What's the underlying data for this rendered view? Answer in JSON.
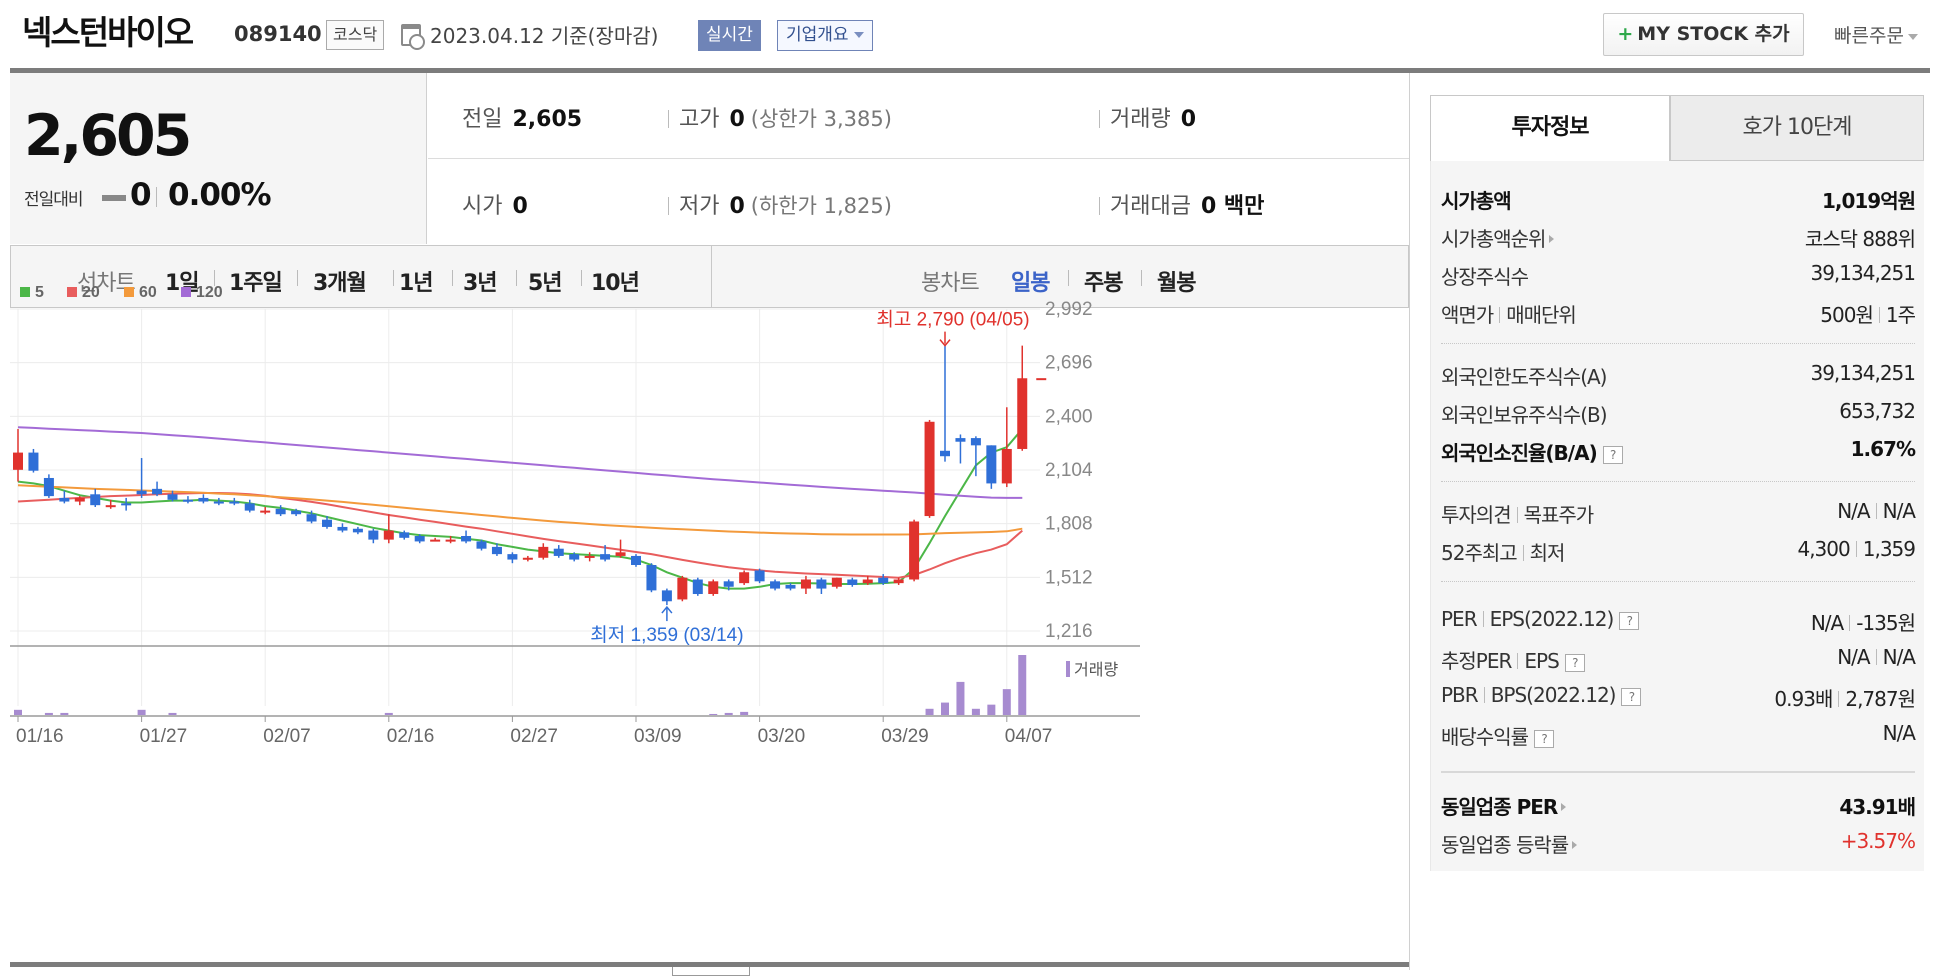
{
  "header": {
    "company": "넥스턴바이오",
    "code": "089140",
    "market": "코스닥",
    "date": "2023.04.12  기준(장마감)",
    "realtime_label": "실시간",
    "overview_label": "기업개요",
    "mystock_label": "MY STOCK 추가",
    "mystock_icon": "plus-icon",
    "quick_order_label": "빠른주문"
  },
  "quote": {
    "price": "2,605",
    "prev_compare_label": "전일대비",
    "change": "0",
    "change_rate": "0.00%",
    "prev_label": "전일",
    "prev_value": "2,605",
    "high_label": "고가",
    "high_value": "0",
    "upper_limit": "(상한가 3,385)",
    "volume_label": "거래량",
    "volume_value": "0",
    "open_label": "시가",
    "open_value": "0",
    "low_label": "저가",
    "low_value": "0",
    "lower_limit": "(하한가 1,825)",
    "amount_label": "거래대금",
    "amount_value": "0 백만"
  },
  "period_tabs": {
    "line_label": "선차트",
    "line_items": [
      "1일",
      "1주일",
      "3개월",
      "1년",
      "3년",
      "5년",
      "10년"
    ],
    "candle_label": "봉차트",
    "candle_items": [
      "일봉",
      "주봉",
      "월봉"
    ],
    "candle_selected": "일봉"
  },
  "colors": {
    "up": "#e0322d",
    "down": "#2f6fd7",
    "ma5": "#4cb748",
    "ma20": "#e85d5d",
    "ma60": "#f39a3c",
    "ma120": "#a36bd6",
    "volume": "#a78bd0"
  },
  "chart_data": {
    "type": "candlestick",
    "legend": [
      "5",
      "20",
      "60",
      "120"
    ],
    "y_ticks": [
      "2,992",
      "2,696",
      "2,400",
      "2,104",
      "1,808",
      "1,512",
      "1,216"
    ],
    "ylim": [
      1216,
      2992
    ],
    "x_ticks": [
      "01/16",
      "01/27",
      "02/07",
      "02/16",
      "02/27",
      "03/09",
      "03/20",
      "03/29",
      "04/07"
    ],
    "high_annotation": "최고 2,790 (04/05)",
    "low_annotation": "최저 1,359 (03/14)",
    "volume_label": "거래량",
    "current_price": 2605,
    "candles": [
      [
        2105,
        2200,
        2330,
        2040
      ],
      [
        2200,
        2100,
        2220,
        2090
      ],
      [
        2060,
        1960,
        2080,
        1950
      ],
      [
        1950,
        1930,
        1990,
        1920
      ],
      [
        1930,
        1950,
        1960,
        1910
      ],
      [
        1970,
        1910,
        2000,
        1900
      ],
      [
        1900,
        1910,
        1940,
        1890
      ],
      [
        1920,
        1910,
        1950,
        1880
      ],
      [
        1990,
        1970,
        2170,
        1950
      ],
      [
        2000,
        1970,
        2040,
        1960
      ],
      [
        1970,
        1940,
        1990,
        1930
      ],
      [
        1940,
        1930,
        1960,
        1920
      ],
      [
        1950,
        1930,
        1970,
        1920
      ],
      [
        1930,
        1920,
        1950,
        1910
      ],
      [
        1930,
        1920,
        1950,
        1910
      ],
      [
        1920,
        1880,
        1940,
        1870
      ],
      [
        1870,
        1880,
        1900,
        1860
      ],
      [
        1890,
        1860,
        1910,
        1850
      ],
      [
        1880,
        1860,
        1890,
        1850
      ],
      [
        1860,
        1820,
        1880,
        1810
      ],
      [
        1830,
        1790,
        1850,
        1780
      ],
      [
        1790,
        1770,
        1810,
        1760
      ],
      [
        1780,
        1760,
        1790,
        1750
      ],
      [
        1770,
        1720,
        1780,
        1700
      ],
      [
        1720,
        1770,
        1860,
        1700
      ],
      [
        1760,
        1730,
        1770,
        1720
      ],
      [
        1740,
        1710,
        1750,
        1700
      ],
      [
        1720,
        1720,
        1730,
        1710
      ],
      [
        1720,
        1720,
        1740,
        1700
      ],
      [
        1740,
        1710,
        1770,
        1700
      ],
      [
        1710,
        1670,
        1720,
        1660
      ],
      [
        1680,
        1640,
        1700,
        1630
      ],
      [
        1640,
        1610,
        1650,
        1590
      ],
      [
        1610,
        1620,
        1630,
        1600
      ],
      [
        1620,
        1680,
        1700,
        1610
      ],
      [
        1670,
        1630,
        1690,
        1620
      ],
      [
        1640,
        1610,
        1650,
        1600
      ],
      [
        1620,
        1630,
        1650,
        1600
      ],
      [
        1640,
        1610,
        1690,
        1600
      ],
      [
        1630,
        1650,
        1720,
        1620
      ],
      [
        1630,
        1580,
        1640,
        1570
      ],
      [
        1580,
        1440,
        1590,
        1430
      ],
      [
        1440,
        1380,
        1450,
        1359
      ],
      [
        1390,
        1510,
        1520,
        1380
      ],
      [
        1500,
        1420,
        1510,
        1410
      ],
      [
        1420,
        1490,
        1500,
        1410
      ],
      [
        1490,
        1460,
        1500,
        1440
      ],
      [
        1480,
        1540,
        1550,
        1470
      ],
      [
        1550,
        1490,
        1560,
        1480
      ],
      [
        1490,
        1450,
        1500,
        1440
      ],
      [
        1470,
        1450,
        1480,
        1440
      ],
      [
        1450,
        1500,
        1520,
        1420
      ],
      [
        1500,
        1450,
        1510,
        1420
      ],
      [
        1460,
        1510,
        1510,
        1450
      ],
      [
        1500,
        1470,
        1510,
        1460
      ],
      [
        1480,
        1500,
        1520,
        1470
      ],
      [
        1510,
        1480,
        1530,
        1470
      ],
      [
        1480,
        1500,
        1510,
        1470
      ],
      [
        1500,
        1820,
        1830,
        1490
      ],
      [
        1850,
        2370,
        2380,
        1840
      ],
      [
        2210,
        2180,
        2790,
        2150
      ],
      [
        2280,
        2260,
        2300,
        2140
      ],
      [
        2280,
        2240,
        2290,
        2070
      ],
      [
        2240,
        2030,
        2240,
        2000
      ],
      [
        2030,
        2220,
        2450,
        2010
      ],
      [
        2220,
        2610,
        2790,
        2210
      ]
    ],
    "ma": {
      "5": [
        2040,
        2030,
        2015,
        1990,
        1965,
        1950,
        1935,
        1925,
        1925,
        1930,
        1935,
        1935,
        1940,
        1935,
        1930,
        1920,
        1905,
        1895,
        1880,
        1865,
        1845,
        1825,
        1805,
        1785,
        1770,
        1755,
        1745,
        1740,
        1735,
        1725,
        1715,
        1695,
        1680,
        1665,
        1655,
        1645,
        1640,
        1635,
        1630,
        1625,
        1610,
        1580,
        1540,
        1510,
        1480,
        1460,
        1450,
        1450,
        1460,
        1475,
        1480,
        1480,
        1478,
        1475,
        1475,
        1477,
        1480,
        1485,
        1560,
        1700,
        1850,
        1990,
        2130,
        2200,
        2230,
        2330
      ],
      "20": [
        1930,
        1935,
        1940,
        1945,
        1950,
        1955,
        1960,
        1963,
        1966,
        1970,
        1973,
        1975,
        1977,
        1977,
        1975,
        1970,
        1962,
        1950,
        1940,
        1928,
        1915,
        1900,
        1885,
        1870,
        1856,
        1843,
        1830,
        1818,
        1805,
        1792,
        1780,
        1766,
        1752,
        1738,
        1724,
        1712,
        1700,
        1688,
        1676,
        1664,
        1652,
        1640,
        1624,
        1608,
        1594,
        1580,
        1568,
        1558,
        1550,
        1543,
        1538,
        1533,
        1530,
        1526,
        1522,
        1518,
        1514,
        1510,
        1525,
        1555,
        1590,
        1620,
        1645,
        1665,
        1695,
        1770
      ],
      "60": [
        2020,
        2016,
        2012,
        2008,
        2004,
        2000,
        1997,
        1994,
        1991,
        1988,
        1985,
        1982,
        1978,
        1974,
        1970,
        1965,
        1960,
        1954,
        1948,
        1942,
        1935,
        1928,
        1920,
        1912,
        1904,
        1896,
        1888,
        1880,
        1872,
        1864,
        1856,
        1848,
        1840,
        1832,
        1825,
        1818,
        1812,
        1806,
        1800,
        1795,
        1790,
        1785,
        1781,
        1777,
        1773,
        1769,
        1765,
        1762,
        1759,
        1756,
        1754,
        1752,
        1750,
        1749,
        1748,
        1748,
        1748,
        1748,
        1749,
        1752,
        1756,
        1758,
        1760,
        1762,
        1766,
        1780
      ],
      "120": [
        2340,
        2336,
        2332,
        2328,
        2324,
        2320,
        2316,
        2312,
        2308,
        2302,
        2296,
        2290,
        2284,
        2277,
        2270,
        2263,
        2256,
        2249,
        2242,
        2235,
        2228,
        2221,
        2214,
        2207,
        2200,
        2193,
        2186,
        2179,
        2172,
        2165,
        2158,
        2151,
        2144,
        2137,
        2130,
        2123,
        2116,
        2109,
        2102,
        2095,
        2088,
        2081,
        2074,
        2067,
        2060,
        2053,
        2047,
        2041,
        2035,
        2029,
        2023,
        2017,
        2011,
        2005,
        2000,
        1995,
        1990,
        1985,
        1980,
        1974,
        1968,
        1962,
        1957,
        1952,
        1950,
        1950
      ]
    },
    "volume": [
      5,
      0,
      2,
      2,
      0,
      0,
      0,
      0,
      5,
      0,
      2,
      0,
      0,
      0,
      0,
      0,
      0,
      0,
      0,
      0,
      0,
      0,
      0,
      0,
      2,
      0,
      0,
      0,
      0,
      0,
      0,
      0,
      0,
      0,
      0,
      0,
      0,
      0,
      0,
      0,
      0,
      0,
      0,
      0,
      0,
      1,
      2,
      3,
      0,
      0,
      0,
      0,
      0,
      0,
      0,
      0,
      0,
      0,
      0,
      6,
      12,
      32,
      6,
      10,
      25,
      58
    ]
  },
  "right_panel": {
    "tab_invest": "투자정보",
    "tab_hoga": "호가 10단계",
    "rows": {
      "mcap_label": "시가총액",
      "mcap_value": "1,019억원",
      "mcap_rank_label": "시가총액순위",
      "mcap_rank_value": "코스닥 888위",
      "shares_label": "상장주식수",
      "shares_value": "39,134,251",
      "par_label": "액면가",
      "unit_label": "매매단위",
      "par_value": "500원",
      "unit_value": "1주",
      "foreign_limit_label": "외국인한도주식수(A)",
      "foreign_limit_value": "39,134,251",
      "foreign_hold_label": "외국인보유주식수(B)",
      "foreign_hold_value": "653,732",
      "foreign_rate_label": "외국인소진율(B/A)",
      "foreign_rate_value": "1.67%",
      "opinion_label": "투자의견",
      "target_label": "목표주가",
      "opinion_value": "N/A",
      "target_value": "N/A",
      "w52_label": "52주최고",
      "w52_low_label": "최저",
      "w52_high_value": "4,300",
      "w52_low_value": "1,359",
      "per_label": "PER",
      "eps_label": "EPS(2022.12)",
      "per_value": "N/A",
      "eps_value": "-135원",
      "est_per_label": "추정PER",
      "est_eps_label": "EPS",
      "est_per_value": "N/A",
      "est_eps_value": "N/A",
      "pbr_label": "PBR",
      "bps_label": "BPS(2022.12)",
      "pbr_value": "0.93배",
      "bps_value": "2,787원",
      "div_label": "배당수익률",
      "div_value": "N/A",
      "ind_per_label": "동일업종 PER",
      "ind_per_value": "43.91배",
      "ind_rate_label": "동일업종 등락률",
      "ind_rate_value": "+3.57%"
    },
    "help_icon": "help-icon"
  }
}
